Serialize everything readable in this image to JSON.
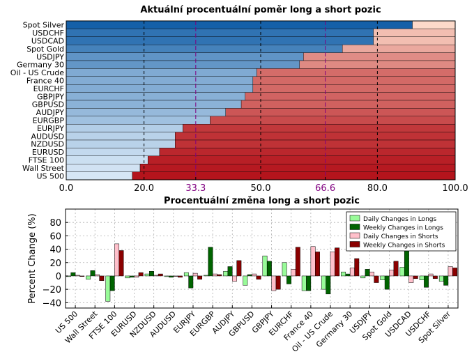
{
  "chart_data": [
    {
      "type": "bar",
      "orientation": "horizontal",
      "stacked": true,
      "title": "Aktuální procentuální poměr long a short pozic",
      "xlim": [
        0,
        100
      ],
      "xticks": [
        "0.0",
        "20.0",
        "33.3",
        "50.0",
        "66.6",
        "80.0",
        "100.0"
      ],
      "xtick_values": [
        0,
        20,
        33.3,
        50,
        66.6,
        80,
        100
      ],
      "highlight_ticks": [
        "33.3",
        "66.6"
      ],
      "highlight_color": "#800080",
      "categories": [
        "Spot Silver",
        "USDCHF",
        "USDCAD",
        "Spot Gold",
        "USDJPY",
        "Germany 30",
        "Oil - US Crude",
        "France 40",
        "EURCHF",
        "GBPJPY",
        "GBPUSD",
        "AUDJPY",
        "EURGBP",
        "EURJPY",
        "AUDUSD",
        "NZDUSD",
        "EURUSD",
        "FTSE 100",
        "Wall Street",
        "US 500"
      ],
      "series": [
        {
          "values": [
            89,
            79,
            79,
            71,
            61,
            60,
            49,
            48,
            48,
            46,
            45,
            41,
            37,
            30,
            28,
            28,
            24,
            21,
            19,
            17
          ]
        },
        {
          "values": [
            11,
            21,
            21,
            29,
            39,
            40,
            51,
            52,
            52,
            54,
            55,
            59,
            63,
            70,
            72,
            72,
            76,
            79,
            81,
            83
          ]
        }
      ],
      "grid": true
    },
    {
      "type": "bar",
      "title": "Procentuální změna long a short pozic",
      "ylabel": "Percent Change (%)",
      "ylim": [
        -48,
        100
      ],
      "yticks": [
        "−40",
        "−20",
        "0",
        "20",
        "40",
        "60",
        "80"
      ],
      "ytick_values": [
        -40,
        -20,
        0,
        20,
        40,
        60,
        80
      ],
      "categories": [
        "US 500",
        "Wall Street",
        "FTSE 100",
        "EURUSD",
        "NZDUSD",
        "AUDUSD",
        "EURJPY",
        "EURGBP",
        "AUDJPY",
        "GBPUSD",
        "GBPJPY",
        "EURCHF",
        "France 40",
        "Oil - US Crude",
        "Germany 30",
        "USDJPY",
        "Spot Gold",
        "USDCAD",
        "USDCHF",
        "Spot Silver"
      ],
      "legend_position": "top-right",
      "grid": true,
      "series": [
        {
          "name": "Daily Changes in Longs",
          "color": "#98fb98",
          "values": [
            -1,
            -5,
            -38,
            -3,
            3,
            -1,
            5,
            1,
            7,
            -14,
            30,
            20,
            -22,
            -20,
            6,
            -3,
            -6,
            13,
            -6,
            -8
          ]
        },
        {
          "name": "Weekly Changes in Longs",
          "color": "#006400",
          "values": [
            5,
            8,
            -22,
            -2,
            7,
            -2,
            -18,
            43,
            14,
            2,
            22,
            -12,
            -22,
            -27,
            3,
            10,
            -20,
            38,
            -17,
            -14
          ]
        },
        {
          "name": "Daily Changes in Shorts",
          "color": "#ffc0cb",
          "values": [
            1,
            2,
            48,
            -2,
            1,
            0,
            4,
            3,
            -8,
            3,
            -22,
            10,
            44,
            36,
            12,
            6,
            9,
            -10,
            3,
            14
          ]
        },
        {
          "name": "Weekly Changes in Shorts",
          "color": "#8b0000",
          "values": [
            0,
            -7,
            38,
            5,
            3,
            -2,
            -5,
            2,
            23,
            -5,
            -20,
            43,
            36,
            42,
            26,
            -10,
            22,
            -4,
            -4,
            12
          ]
        }
      ]
    }
  ]
}
